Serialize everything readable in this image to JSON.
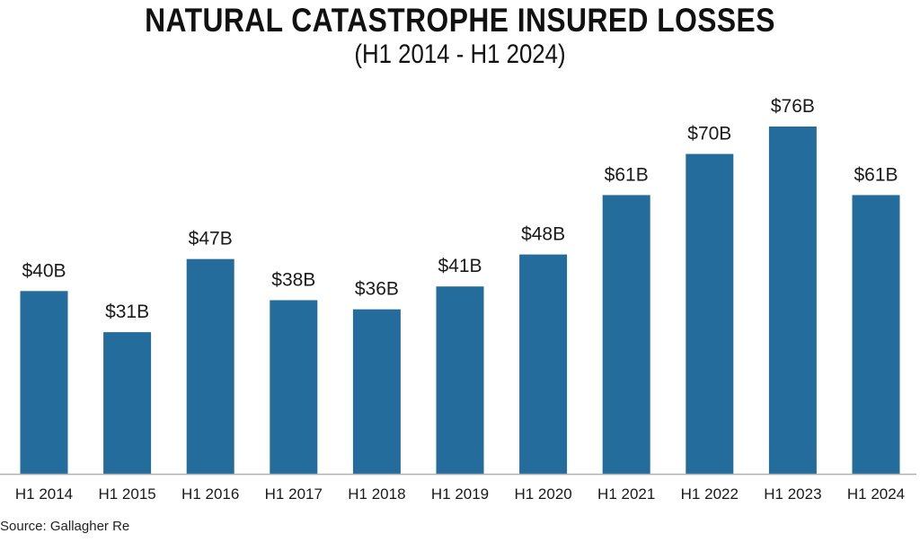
{
  "chart_data": {
    "type": "bar",
    "title": "NATURAL CATASTROPHE INSURED LOSSES",
    "subtitle": "(H1 2014 - H1 2024)",
    "xlabel": "",
    "ylabel": "",
    "categories": [
      "H1 2014",
      "H1 2015",
      "H1 2016",
      "H1 2017",
      "H1 2018",
      "H1 2019",
      "H1 2020",
      "H1 2021",
      "H1 2022",
      "H1 2023",
      "H1 2024"
    ],
    "values": [
      40,
      31,
      47,
      38,
      36,
      41,
      48,
      61,
      70,
      76,
      61
    ],
    "data_labels": [
      "$40B",
      "$31B",
      "$47B",
      "$38B",
      "$36B",
      "$41B",
      "$48B",
      "$61B",
      "$70B",
      "$76B",
      "$61B"
    ],
    "units": "USD billions",
    "ylim": [
      0,
      80
    ],
    "grid": false,
    "legend": "none",
    "bar_color": "#236c9b",
    "baseline_color": "#b0b0b0",
    "source": "Source: Gallagher Re"
  }
}
